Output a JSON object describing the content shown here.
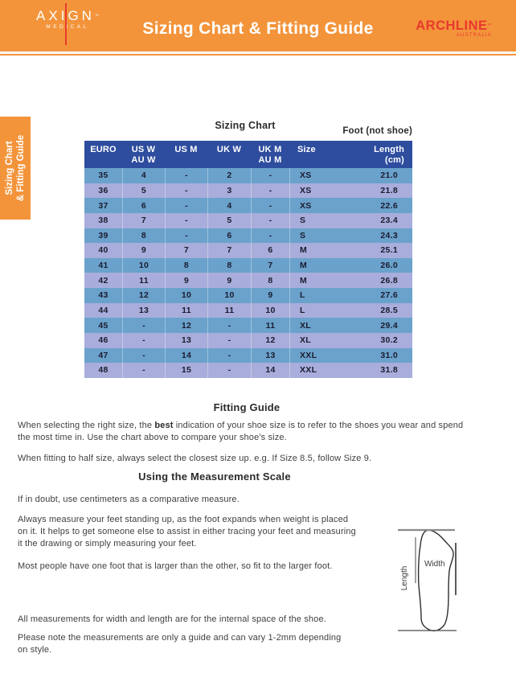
{
  "header": {
    "brand_left": {
      "name": "AXIGN",
      "tm": "™",
      "sub": "MEDICAL"
    },
    "title": "Sizing Chart & Fitting Guide",
    "brand_right": {
      "name": "ARCHLINE",
      "tm": "™",
      "sub": "AUSTRALIA"
    }
  },
  "side_tab": {
    "line1": "Sizing Chart",
    "line2": "& Fitting Guide"
  },
  "table": {
    "title": "Sizing Chart",
    "foot_label": "Foot (not shoe)",
    "headers": [
      {
        "l1": "EURO",
        "l2": ""
      },
      {
        "l1": "US W",
        "l2": "AU W"
      },
      {
        "l1": "US M",
        "l2": ""
      },
      {
        "l1": "UK W",
        "l2": ""
      },
      {
        "l1": "UK M",
        "l2": "AU M"
      },
      {
        "l1": "Size",
        "l2": ""
      },
      {
        "l1": "Length",
        "l2": "(cm)"
      }
    ],
    "rows": [
      [
        "35",
        "4",
        "-",
        "2",
        "-",
        "XS",
        "21.0"
      ],
      [
        "36",
        "5",
        "-",
        "3",
        "-",
        "XS",
        "21.8"
      ],
      [
        "37",
        "6",
        "-",
        "4",
        "-",
        "XS",
        "22.6"
      ],
      [
        "38",
        "7",
        "-",
        "5",
        "-",
        "S",
        "23.4"
      ],
      [
        "39",
        "8",
        "-",
        "6",
        "-",
        "S",
        "24.3"
      ],
      [
        "40",
        "9",
        "7",
        "7",
        "6",
        "M",
        "25.1"
      ],
      [
        "41",
        "10",
        "8",
        "8",
        "7",
        "M",
        "26.0"
      ],
      [
        "42",
        "11",
        "9",
        "9",
        "8",
        "M",
        "26.8"
      ],
      [
        "43",
        "12",
        "10",
        "10",
        "9",
        "L",
        "27.6"
      ],
      [
        "44",
        "13",
        "11",
        "11",
        "10",
        "L",
        "28.5"
      ],
      [
        "45",
        "-",
        "12",
        "-",
        "11",
        "XL",
        "29.4"
      ],
      [
        "46",
        "-",
        "13",
        "-",
        "12",
        "XL",
        "30.2"
      ],
      [
        "47",
        "-",
        "14",
        "-",
        "13",
        "XXL",
        "31.0"
      ],
      [
        "48",
        "-",
        "15",
        "-",
        "14",
        "XXL",
        "31.8"
      ]
    ]
  },
  "fitting_guide": {
    "heading": "Fitting Guide",
    "p1l1_pre": "When selecting the right size, the ",
    "p1l1_bold": "best",
    "p1l1_post": " indication of your shoe size is to refer to the shoes you wear and spend",
    "p1l2": "the most time in. Use the chart above to compare your shoe's size.",
    "p2": "When fitting to half size, always select the closest size up. e.g. If Size 8.5, follow Size 9."
  },
  "measurement": {
    "heading": "Using the Measurement Scale",
    "p1": "If in doubt, use centimeters as a comparative measure.",
    "p2_lines": [
      "Always measure your feet standing up, as the foot expands when weight is placed",
      "on it. It helps to get someone else to assist in either tracing your feet and measuring",
      "it the drawing or simply measuring your feet."
    ],
    "p3": "Most people have one foot that is larger than the other, so fit to the larger foot.",
    "p4": "All measurements for width and length are for the internal space of the shoe.",
    "p5_lines": [
      "Please note the measurements are only a guide and can vary 1-2mm depending",
      "on style."
    ]
  },
  "diagram": {
    "width_label": "Width",
    "length_label": "Length"
  },
  "colors": {
    "banner_orange": "#F3943B",
    "accent_red": "#E8392D",
    "table_header_navy": "#2E4D9E",
    "row_blue": "#6AA2CC",
    "row_lavender": "#A8ADDB"
  }
}
